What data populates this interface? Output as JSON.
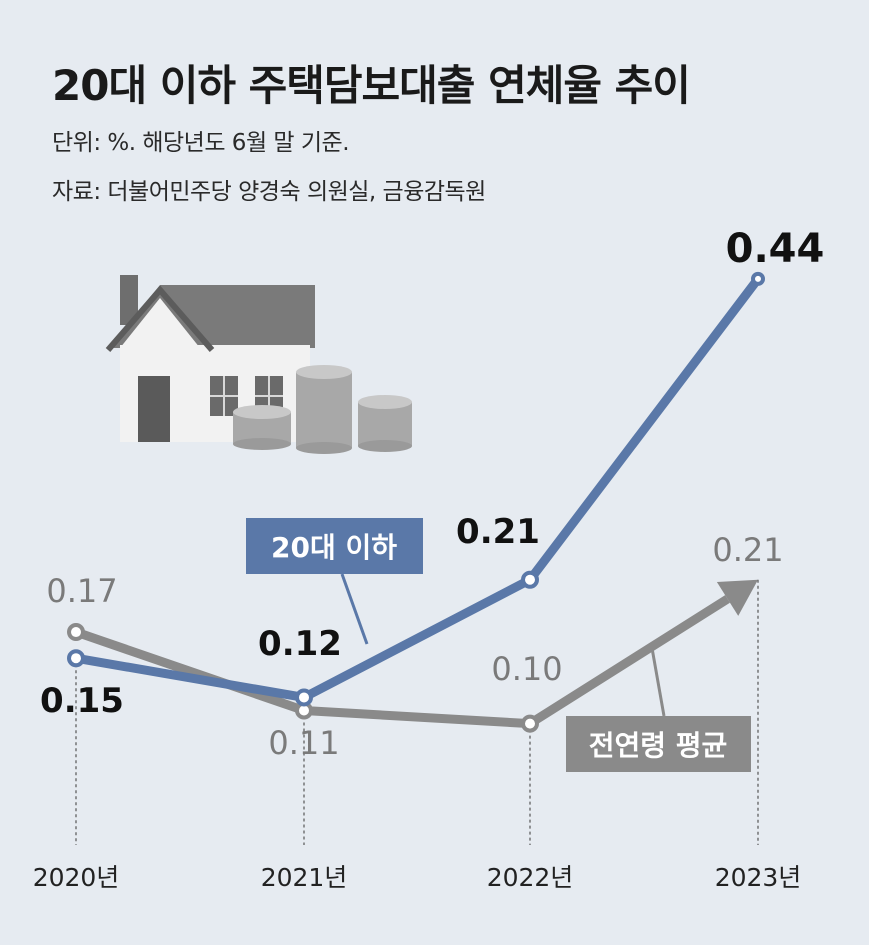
{
  "title": "20대 이하 주택담보대출 연체율 추이",
  "unit_note": "단위: %. 해당년도 6월 말 기준.",
  "source_note": "자료: 더불어민주당 양경숙 의원실, 금융감독원",
  "chart_data": {
    "type": "line",
    "title": "20대 이하 주택담보대출 연체율 추이",
    "categories": [
      "2020년",
      "2021년",
      "2022년",
      "2023년"
    ],
    "series": [
      {
        "name": "20대 이하",
        "values": [
          0.15,
          0.12,
          0.21,
          0.44
        ],
        "color": "#5a78a8",
        "labels": [
          "0.15",
          "0.12",
          "0.21",
          "0.44"
        ]
      },
      {
        "name": "전연령 평균",
        "values": [
          0.17,
          0.11,
          0.1,
          0.21
        ],
        "color": "#8a8a8a",
        "labels": [
          "0.17",
          "0.11",
          "0.10",
          "0.21"
        ]
      }
    ],
    "grid": false,
    "legend": "inline labels"
  }
}
